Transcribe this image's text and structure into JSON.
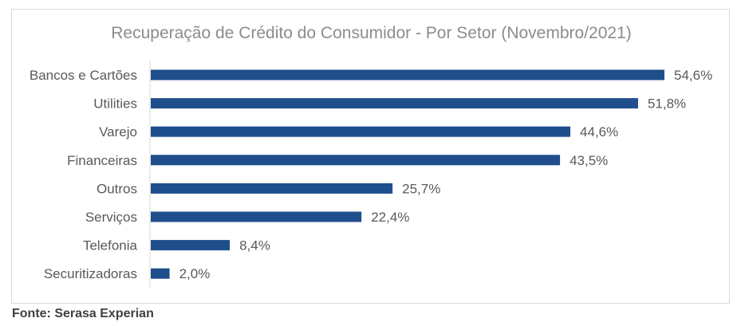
{
  "chart_data": {
    "type": "bar",
    "orientation": "horizontal",
    "title": "Recuperação de Crédito do Consumidor - Por Setor (Novembro/2021)",
    "categories": [
      "Bancos e Cartões",
      "Utilities",
      "Varejo",
      "Financeiras",
      "Outros",
      "Serviços",
      "Telefonia",
      "Securitizadoras"
    ],
    "values": [
      54.6,
      51.8,
      44.6,
      43.5,
      25.7,
      22.4,
      8.4,
      2.0
    ],
    "value_labels": [
      "54,6%",
      "51,8%",
      "44,6%",
      "43,5%",
      "25,7%",
      "22,4%",
      "8,4%",
      "2,0%"
    ],
    "xlim": [
      0,
      54.6
    ],
    "bar_color": "#1f4e8c",
    "grid": false,
    "legend": "none"
  },
  "source": "Fonte: Serasa Experian"
}
